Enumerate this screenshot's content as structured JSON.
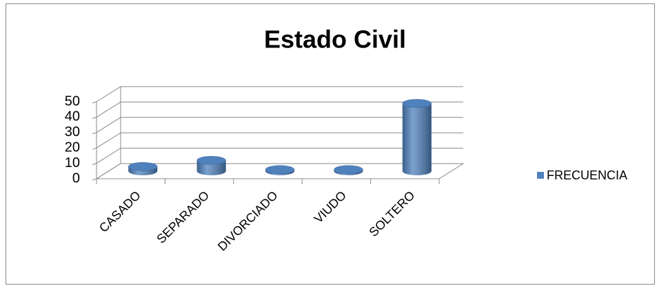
{
  "chart_data": {
    "type": "bar3d",
    "title": "Estado Civil",
    "categories": [
      "CASADO",
      "SEPARADO",
      "DIVORCIADO",
      "VIUDO",
      "SOLTERO"
    ],
    "series": [
      {
        "name": "FRECUENCIA",
        "color": "#4f81bd",
        "values": [
          3,
          7,
          1,
          1,
          44
        ]
      }
    ],
    "ylim": [
      0,
      50
    ],
    "yticks": [
      0,
      10,
      20,
      30,
      40,
      50
    ],
    "grid": true,
    "legend": "right"
  }
}
